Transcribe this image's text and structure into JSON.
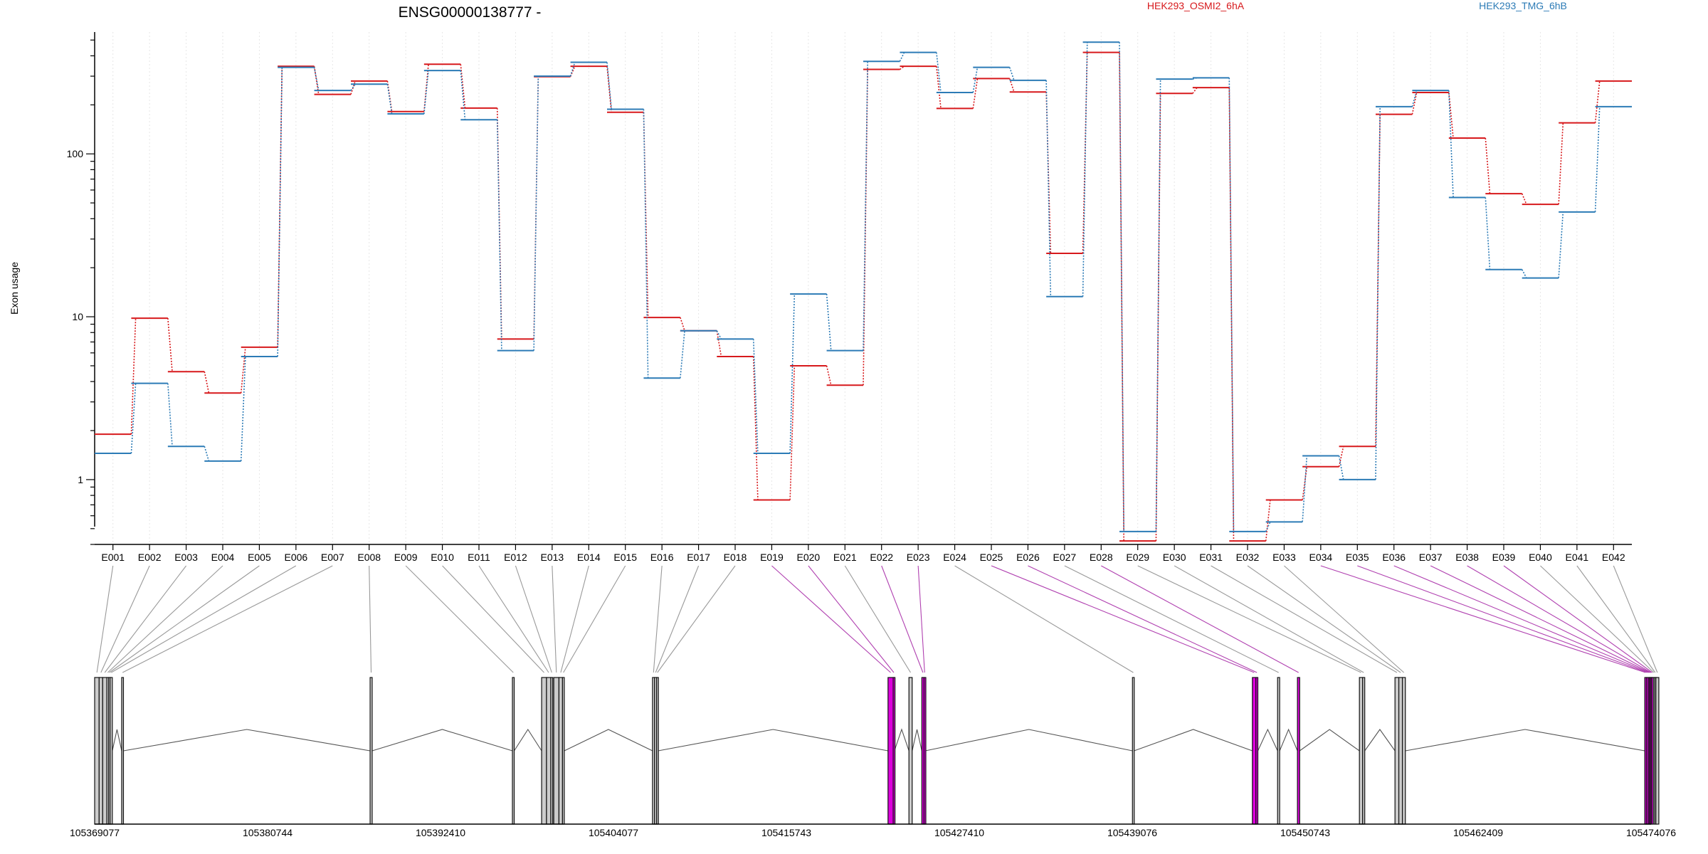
{
  "chart_data": {
    "type": "line",
    "title": "ENSG00000138777 -",
    "ylabel": "Exon usage",
    "xlabel": "",
    "yscale": "log",
    "ylim": [
      0.4,
      560
    ],
    "yticks": [
      1,
      10,
      100
    ],
    "grid": "vertical dotted lines at exons",
    "legend_placement": "top",
    "exons": [
      "E001",
      "E002",
      "E003",
      "E004",
      "E005",
      "E006",
      "E007",
      "E008",
      "E009",
      "E010",
      "E011",
      "E012",
      "E013",
      "E014",
      "E015",
      "E016",
      "E017",
      "E018",
      "E019",
      "E020",
      "E021",
      "E022",
      "E023",
      "E024",
      "E025",
      "E026",
      "E027",
      "E028",
      "E029",
      "E030",
      "E031",
      "E032",
      "E033",
      "E034",
      "E035",
      "E036",
      "E037",
      "E038",
      "E039",
      "E040",
      "E041",
      "E042"
    ],
    "series": [
      {
        "name": "HEK293_OSMI2_6hA",
        "color": "#d7191c",
        "values": [
          1.9,
          9.8,
          4.6,
          3.4,
          6.5,
          345,
          232,
          280,
          182,
          355,
          191,
          7.3,
          298,
          345,
          180,
          9.9,
          8.2,
          5.7,
          0.75,
          5.0,
          3.8,
          330,
          345,
          190,
          290,
          240,
          24.5,
          420,
          0.42,
          235,
          255,
          0.42,
          0.75,
          1.2,
          1.6,
          175,
          238,
          125,
          57,
          49,
          155,
          280
        ]
      },
      {
        "name": "HEK293_TMG_6hB",
        "color": "#2c7bb6",
        "values": [
          1.45,
          3.9,
          1.6,
          1.3,
          5.7,
          340,
          245,
          268,
          176,
          325,
          162,
          6.2,
          300,
          365,
          188,
          4.2,
          8.2,
          7.3,
          1.45,
          13.8,
          6.2,
          370,
          420,
          238,
          340,
          283,
          13.3,
          485,
          0.48,
          288,
          293,
          0.48,
          0.55,
          1.4,
          1.0,
          195,
          245,
          54,
          19.5,
          17.3,
          44,
          195
        ]
      }
    ],
    "gene_model": {
      "coordinate_ticks": [
        "105369077",
        "105380744",
        "105392410",
        "105404077",
        "105415743",
        "105427410",
        "105439076",
        "105450743",
        "105462409",
        "105474076"
      ],
      "highlighted_color": "#dd00dd",
      "normal_color": "#cccccc"
    }
  }
}
